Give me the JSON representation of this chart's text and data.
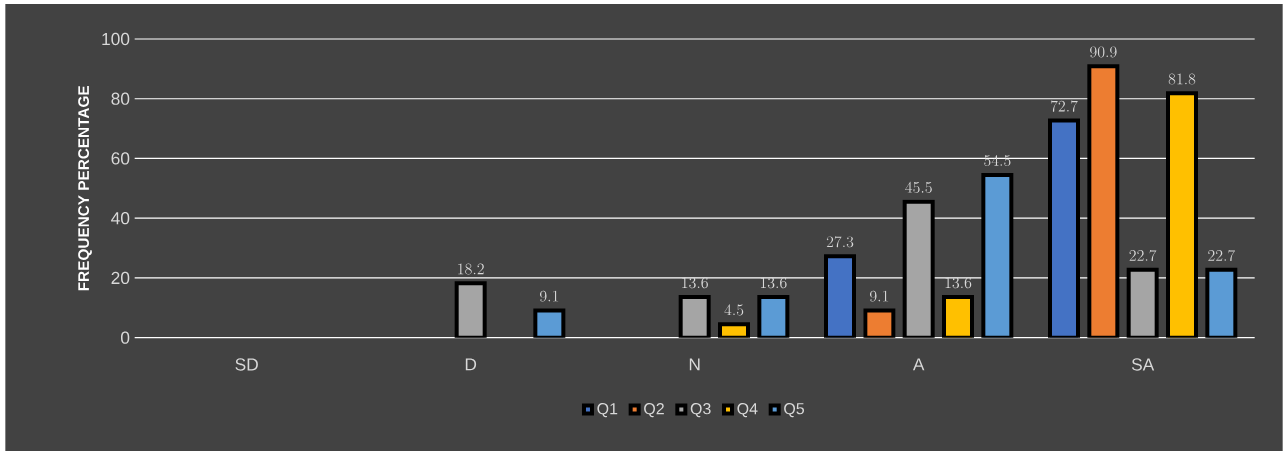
{
  "chart_data": {
    "type": "bar",
    "ylabel": "FREQUENCY PERCENTAGE",
    "categories": [
      "SD",
      "D",
      "N",
      "A",
      "SA"
    ],
    "series": [
      {
        "name": "Q1",
        "color": "#4472c4",
        "values": [
          null,
          null,
          null,
          27.3,
          72.7
        ]
      },
      {
        "name": "Q2",
        "color": "#ed7d31",
        "values": [
          null,
          null,
          null,
          9.1,
          90.9
        ]
      },
      {
        "name": "Q3",
        "color": "#a5a5a5",
        "values": [
          null,
          18.2,
          13.6,
          45.5,
          22.7
        ]
      },
      {
        "name": "Q4",
        "color": "#ffc000",
        "values": [
          null,
          null,
          4.5,
          13.6,
          81.8
        ]
      },
      {
        "name": "Q5",
        "color": "#5b9bd5",
        "values": [
          null,
          9.1,
          13.6,
          54.5,
          22.7
        ]
      }
    ],
    "ylim": [
      0,
      100
    ],
    "yticks": [
      0,
      20,
      40,
      60,
      80,
      100
    ],
    "grid": "y",
    "legend": "bottom",
    "data_labels": true
  }
}
